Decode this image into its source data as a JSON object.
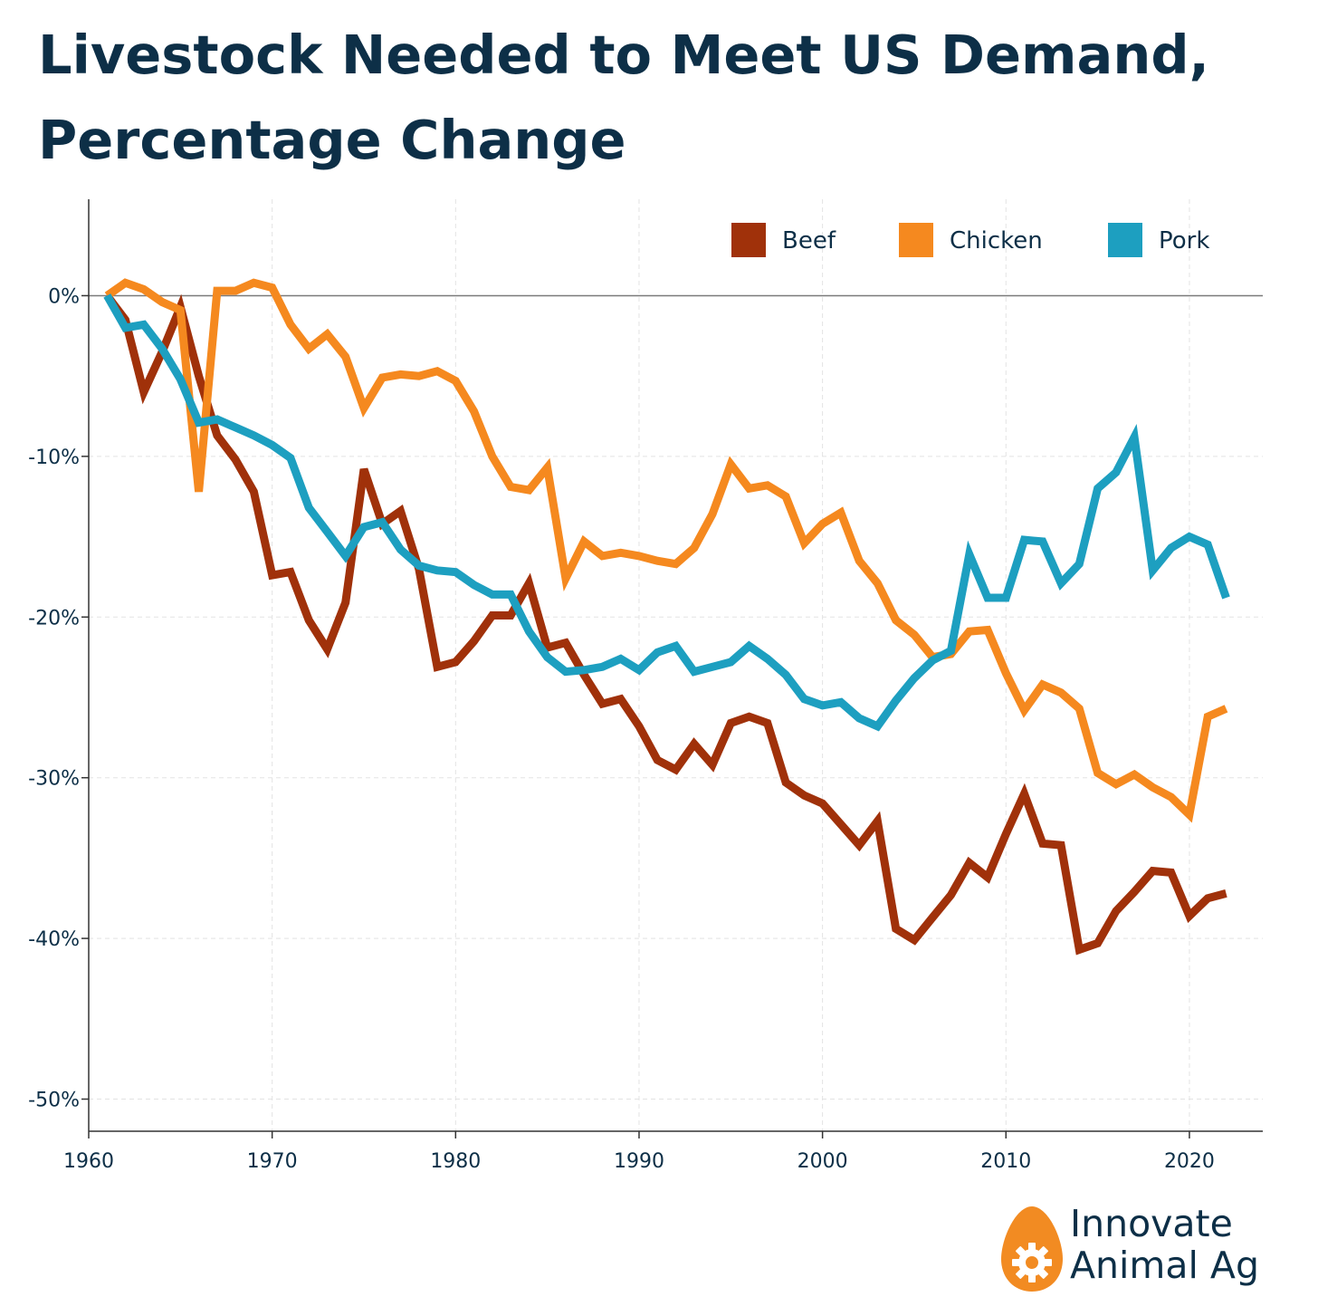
{
  "title": "Livestock Needed to Meet US Demand, Percentage Change",
  "brand": {
    "name": "Innovate\nAnimal Ag",
    "logo_icon": "egg-gear-icon",
    "logo_color": "#f28b22"
  },
  "colors": {
    "beef": "#a0310a",
    "chicken": "#f5891f",
    "pork": "#1d9fc0",
    "title": "#0d2f47"
  },
  "chart_data": {
    "type": "line",
    "title": "Livestock Needed to Meet US Demand, Percentage Change",
    "xlabel": "",
    "ylabel": "",
    "xlim": [
      1960,
      2024
    ],
    "ylim": [
      -52,
      6
    ],
    "x_ticks": [
      1960,
      1970,
      1980,
      1990,
      2000,
      2010,
      2020
    ],
    "x_tick_labels": [
      "1960",
      "1970",
      "1980",
      "1990",
      "2000",
      "2010",
      "2020"
    ],
    "y_ticks": [
      0,
      -10,
      -20,
      -30,
      -40,
      -50
    ],
    "y_tick_labels": [
      "0%",
      "-10%",
      "-20%",
      "-30%",
      "-40%",
      "-50%"
    ],
    "grid": true,
    "legend_position": "top-right",
    "x": [
      1961,
      1962,
      1963,
      1964,
      1965,
      1966,
      1967,
      1968,
      1969,
      1970,
      1971,
      1972,
      1973,
      1974,
      1975,
      1976,
      1977,
      1978,
      1979,
      1980,
      1981,
      1982,
      1983,
      1984,
      1985,
      1986,
      1987,
      1988,
      1989,
      1990,
      1991,
      1992,
      1993,
      1994,
      1995,
      1996,
      1997,
      1998,
      1999,
      2000,
      2001,
      2002,
      2003,
      2004,
      2005,
      2006,
      2007,
      2008,
      2009,
      2010,
      2011,
      2012,
      2013,
      2014,
      2015,
      2016,
      2017,
      2018,
      2019,
      2020,
      2021,
      2022
    ],
    "series": [
      {
        "name": "Beef",
        "color": "#a0310a",
        "values": [
          0,
          -1.5,
          -6,
          -3.5,
          -0.7,
          -5,
          -8.7,
          -10.2,
          -12.2,
          -17.4,
          -17.2,
          -20.2,
          -22,
          -19.1,
          -10.8,
          -14.2,
          -13.4,
          -17,
          -23.1,
          -22.8,
          -21.5,
          -19.9,
          -19.9,
          -17.9,
          -21.9,
          -21.6,
          -23.6,
          -25.4,
          -25.1,
          -26.8,
          -28.9,
          -29.5,
          -27.9,
          -29.2,
          -26.6,
          -26.2,
          -26.6,
          -30.3,
          -31.1,
          -31.6,
          -32.9,
          -34.2,
          -32.7,
          -39.4,
          -40.1,
          -38.7,
          -37.3,
          -35.3,
          -36.2,
          -33.5,
          -31,
          -34.1,
          -34.2,
          -40.7,
          -40.3,
          -38.3,
          -37.1,
          -35.8,
          -35.9,
          -38.6,
          -37.5,
          -37.2
        ]
      },
      {
        "name": "Chicken",
        "color": "#f5891f",
        "values": [
          0,
          0.8,
          0.4,
          -0.4,
          -0.9,
          -12.2,
          0.3,
          0.3,
          0.8,
          0.5,
          -1.8,
          -3.3,
          -2.4,
          -3.8,
          -7,
          -5.1,
          -4.9,
          -5,
          -4.7,
          -5.3,
          -7.2,
          -10,
          -11.9,
          -12.1,
          -10.7,
          -17.6,
          -15.3,
          -16.2,
          -16,
          -16.2,
          -16.5,
          -16.7,
          -15.7,
          -13.6,
          -10.5,
          -12,
          -11.8,
          -12.5,
          -15.4,
          -14.2,
          -13.5,
          -16.5,
          -17.9,
          -20.2,
          -21.1,
          -22.5,
          -22.3,
          -20.9,
          -20.8,
          -23.5,
          -25.8,
          -24.2,
          -24.7,
          -25.7,
          -29.7,
          -30.4,
          -29.8,
          -30.6,
          -31.2,
          -32.3,
          -26.2,
          -25.7
        ]
      },
      {
        "name": "Pork",
        "color": "#1d9fc0",
        "values": [
          0,
          -2,
          -1.8,
          -3.3,
          -5.2,
          -7.9,
          -7.7,
          -8.2,
          -8.7,
          -9.3,
          -10.1,
          -13.2,
          -14.7,
          -16.2,
          -14.4,
          -14.1,
          -15.8,
          -16.8,
          -17.1,
          -17.2,
          -18,
          -18.6,
          -18.6,
          -20.9,
          -22.5,
          -23.4,
          -23.3,
          -23.1,
          -22.6,
          -23.3,
          -22.2,
          -21.8,
          -23.4,
          -23.1,
          -22.8,
          -21.8,
          -22.6,
          -23.6,
          -25.1,
          -25.5,
          -25.3,
          -26.3,
          -26.8,
          -25.2,
          -23.8,
          -22.7,
          -22.1,
          -16.1,
          -18.8,
          -18.8,
          -15.2,
          -15.3,
          -17.9,
          -16.7,
          -12,
          -11,
          -8.8,
          -17.1,
          -15.7,
          -15,
          -15.5,
          -18.8
        ]
      }
    ]
  }
}
